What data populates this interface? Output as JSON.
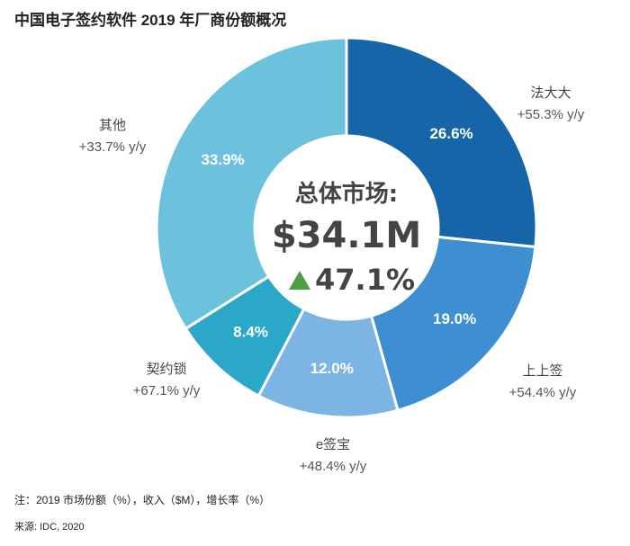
{
  "chart_data": {
    "type": "pie",
    "title": "中国电子签约软件 2019 年厂商份额概况",
    "center": {
      "label": "总体市场:",
      "value": "$34.1M",
      "growth": "47.1%"
    },
    "slices": [
      {
        "name": "法大大",
        "value": 26.6,
        "label": "26.6%",
        "growth": "+55.3% y/y",
        "color": "#1565a8"
      },
      {
        "name": "上上签",
        "value": 19.0,
        "label": "19.0%",
        "growth": "+54.4% y/y",
        "color": "#3d8fd1"
      },
      {
        "name": "e签宝",
        "value": 12.0,
        "label": "12.0%",
        "growth": "+48.4% y/y",
        "color": "#7cb4e4"
      },
      {
        "name": "契约锁",
        "value": 8.4,
        "label": "8.4%",
        "growth": "+67.1% y/y",
        "color": "#2ba7c8"
      },
      {
        "name": "其他",
        "value": 33.9,
        "label": "33.9%",
        "growth": "+33.7% y/y",
        "color": "#6cc2dd"
      }
    ],
    "growth_arrow_color": "#4e9f3d"
  },
  "footnote": "注：2019 市场份额（%），收入（$M），增长率（%）",
  "source": "来源: IDC, 2020"
}
